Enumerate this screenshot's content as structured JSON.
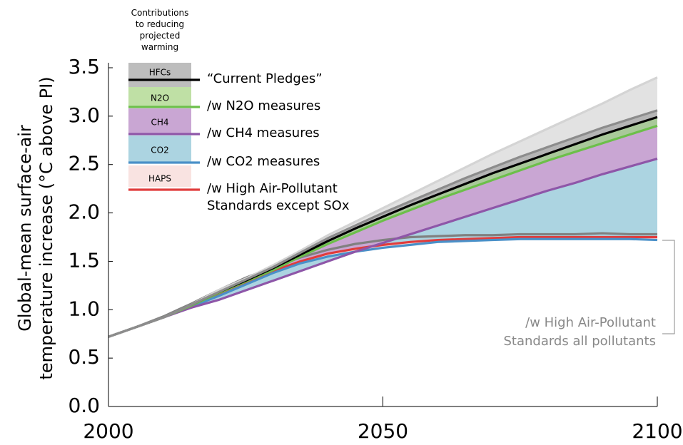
{
  "chart_data": {
    "type": "line",
    "legend_title": "Contributions\nto reducing\nprojected\nwarming",
    "y_label": "Global-mean surface-air\ntemperature increase (°C above PI)",
    "x": [
      2000,
      2005,
      2010,
      2015,
      2020,
      2025,
      2030,
      2035,
      2040,
      2045,
      2050,
      2055,
      2060,
      2065,
      2070,
      2075,
      2080,
      2085,
      2090,
      2095,
      2100
    ],
    "xlim": [
      2000,
      2100
    ],
    "xticks": [
      2000,
      2050,
      2100
    ],
    "ylim": [
      0,
      3.5
    ],
    "yticks": [
      {
        "value": 0,
        "label": "0.0"
      },
      0.5,
      {
        "value": 1,
        "label": "1.0"
      },
      1.5,
      {
        "value": 2,
        "label": "2.0"
      },
      2.5,
      {
        "value": 3,
        "label": "3.0"
      },
      3.5
    ],
    "series": [
      {
        "color": "#d4d4d4",
        "fill": "#e2e2e2",
        "values": [
          0.72,
          0.82,
          0.92,
          1.05,
          1.2,
          1.32,
          1.46,
          1.61,
          1.77,
          1.91,
          2.05,
          2.19,
          2.33,
          2.47,
          2.61,
          2.74,
          2.87,
          3.0,
          3.13,
          3.27,
          3.4
        ]
      },
      {
        "color": "#8c8c8c",
        "fill": "#b5b5b5",
        "values": [
          0.72,
          0.82,
          0.92,
          1.05,
          1.18,
          1.31,
          1.44,
          1.59,
          1.74,
          1.87,
          2.0,
          2.12,
          2.24,
          2.36,
          2.47,
          2.58,
          2.68,
          2.78,
          2.88,
          2.97,
          3.06
        ]
      },
      {
        "name": "“Current Pledges”",
        "band_label": "HFCs",
        "band_color": "#bdbdbd",
        "color": "#000000",
        "fill": "#a9c99a",
        "values": [
          0.72,
          0.82,
          0.92,
          1.05,
          1.18,
          1.3,
          1.43,
          1.57,
          1.71,
          1.84,
          1.96,
          2.08,
          2.19,
          2.3,
          2.41,
          2.51,
          2.61,
          2.71,
          2.81,
          2.9,
          2.99
        ]
      },
      {
        "name": "/w N2O measures",
        "band_label": "N2O",
        "band_color": "#bfe0a5",
        "color": "#6cbf4a",
        "fill": "#c9a6d3",
        "values": [
          0.72,
          0.82,
          0.92,
          1.04,
          1.17,
          1.29,
          1.41,
          1.55,
          1.68,
          1.8,
          1.92,
          2.03,
          2.14,
          2.24,
          2.34,
          2.44,
          2.54,
          2.63,
          2.72,
          2.81,
          2.9
        ]
      },
      {
        "name": "/w CH4 measures",
        "band_label": "CH4",
        "band_color": "#c9a6d3",
        "color": "#8e56a8",
        "fill": "#acd4e1",
        "values": [
          0.72,
          0.82,
          0.92,
          1.02,
          1.1,
          1.2,
          1.3,
          1.4,
          1.5,
          1.6,
          1.69,
          1.78,
          1.87,
          1.96,
          2.05,
          2.14,
          2.23,
          2.31,
          2.4,
          2.48,
          2.56
        ]
      },
      {
        "name": "/w CO2 measures",
        "band_label": "CO2",
        "band_color": "#acd4e1",
        "color": "#4a90c8",
        "fill": "#f7dede",
        "values": [
          0.72,
          0.82,
          0.92,
          1.03,
          1.14,
          1.26,
          1.38,
          1.48,
          1.55,
          1.6,
          1.64,
          1.67,
          1.7,
          1.71,
          1.72,
          1.73,
          1.73,
          1.73,
          1.73,
          1.73,
          1.72
        ]
      },
      {
        "name": "/w High Air-Pollutant\nStandards except SOx",
        "band_label": "HAPS",
        "band_color": "#f9e3e1",
        "color": "#e03c3c",
        "values": [
          0.72,
          0.82,
          0.92,
          1.03,
          1.15,
          1.28,
          1.4,
          1.5,
          1.58,
          1.63,
          1.67,
          1.7,
          1.72,
          1.73,
          1.74,
          1.75,
          1.75,
          1.75,
          1.75,
          1.75,
          1.75
        ]
      },
      {
        "name": "/w High Air-Pollutant\nStandards all pollutants",
        "color": "#808080",
        "values": [
          0.72,
          0.82,
          0.93,
          1.06,
          1.2,
          1.33,
          1.44,
          1.54,
          1.62,
          1.68,
          1.72,
          1.75,
          1.76,
          1.77,
          1.77,
          1.78,
          1.78,
          1.78,
          1.79,
          1.78,
          1.78
        ]
      }
    ]
  }
}
